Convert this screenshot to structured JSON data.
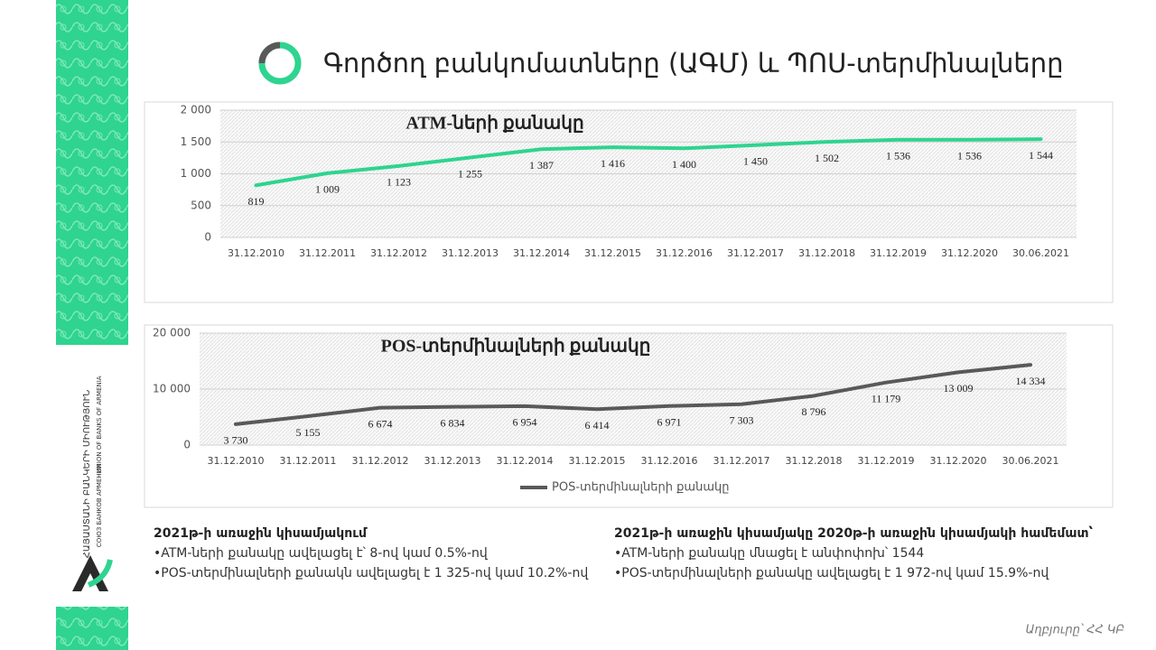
{
  "title": "Գործող բանկոմատները (ԱԳՄ) և ՊՈՍ-տերմինալները",
  "sidebar": {
    "armenian": "ՀԱՅԱՍՏԱՆԻ ԲԱՆԿԵՐԻ ՄԻՈՒԹՅՈՒՆ",
    "english": "UNION OF BANKS OF ARMENIA",
    "russian": "СОЮЗ БАНКОВ АРМЕНИИ"
  },
  "chart_data": [
    {
      "type": "line",
      "title": "ATM-ների քանակը",
      "categories": [
        "31.12.2010",
        "31.12.2011",
        "31.12.2012",
        "31.12.2013",
        "31.12.2014",
        "31.12.2015",
        "31.12.2016",
        "31.12.2017",
        "31.12.2018",
        "31.12.2019",
        "31.12.2020",
        "30.06.2021"
      ],
      "values": [
        819,
        1009,
        1123,
        1255,
        1387,
        1416,
        1400,
        1450,
        1502,
        1536,
        1536,
        1544
      ],
      "value_labels": [
        "819",
        "1 009",
        "1 123",
        "1 255",
        "1 387",
        "1 416",
        "1 400",
        "1 450",
        "1 502",
        "1 536",
        "1 536",
        "1 544"
      ],
      "color": "#2ed48f",
      "ylim": [
        0,
        2000
      ],
      "yticks": [
        0,
        500,
        {
          "value": 1000,
          "label": "1 000"
        },
        {
          "value": 1500,
          "label": "1 500"
        },
        {
          "value": 2000,
          "label": "2 000"
        }
      ],
      "grid": true
    },
    {
      "type": "line",
      "title": "POS-տերմինալների քանակը",
      "categories": [
        "31.12.2010",
        "31.12.2011",
        "31.12.2012",
        "31.12.2013",
        "31.12.2014",
        "31.12.2015",
        "31.12.2016",
        "31.12.2017",
        "31.12.2018",
        "31.12.2019",
        "31.12.2020",
        "30.06.2021"
      ],
      "series": [
        {
          "name": "POS-տերմինալների քանակը",
          "color": "#595959",
          "values": [
            3730,
            5155,
            6674,
            6834,
            6954,
            6414,
            6971,
            7303,
            8796,
            11179,
            13009,
            14334
          ],
          "value_labels": [
            "3 730",
            "5 155",
            "6 674",
            "6 834",
            "6 954",
            "6 414",
            "6 971",
            "7 303",
            "8 796",
            "11 179",
            "13 009",
            "14 334"
          ]
        }
      ],
      "ylim": [
        0,
        20000
      ],
      "yticks": [
        0,
        {
          "value": 10000,
          "label": "10 000"
        },
        {
          "value": 20000,
          "label": "20 000"
        }
      ],
      "grid": true,
      "legend": "bottom"
    }
  ],
  "notes": [
    {
      "heading": "2021թ-ի առաջին կիսամյակում",
      "items": [
        "•ATM-ների քանակը ավելացել է՝ 8-ով կամ 0.5%-ով",
        "•POS-տերմինալների քանակն ավելացել է 1 325-ով կամ 10.2%-ով"
      ]
    },
    {
      "heading": "2021թ-ի առաջին կիսամյակը 2020թ-ի առաջին կիսամյակի համեմատ՝",
      "items": [
        "•ATM-ների քանակը մնացել է անփոփոխ՝ 1544",
        "•POS-տերմինալների քանակը ավելացել է 1 972-ով կամ 15.9%-ով"
      ]
    }
  ],
  "source": "Աղբյուրը՝ ՀՀ ԿԲ"
}
